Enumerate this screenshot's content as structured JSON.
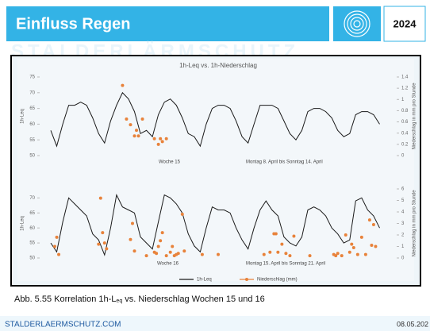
{
  "header": {
    "title": "Einfluss Regen",
    "year": "2024",
    "watermark": "STALDERLÄRMSCHUTZ"
  },
  "chart_data": [
    {
      "type": "line",
      "title": "1h-Leq vs. 1h-Niederschlag",
      "y_label": "1h-Leq",
      "y2_label": "Niederschlag in mm pro Stunde",
      "annotations": [
        "Woche 15",
        "Montag 8. April bis Sonntag 14. April"
      ],
      "xlim": [
        0,
        168
      ],
      "ylim": [
        50,
        75
      ],
      "yticks": [
        50,
        55,
        60,
        65,
        70,
        75
      ],
      "y2lim": [
        0,
        1.4
      ],
      "y2ticks": [
        0,
        0.2,
        0.4,
        0.6,
        0.8,
        1,
        1.2,
        1.4
      ],
      "series": [
        {
          "name": "1h-Leq",
          "color": "#1a1a1a",
          "x": [
            0,
            3,
            6,
            9,
            12,
            15,
            18,
            21,
            24,
            27,
            30,
            33,
            36,
            39,
            42,
            45,
            48,
            51,
            54,
            57,
            60,
            63,
            66,
            69,
            72,
            75,
            78,
            81,
            84,
            87,
            90,
            93,
            96,
            99,
            102,
            105,
            108,
            111,
            114,
            117,
            120,
            123,
            126,
            129,
            132,
            135,
            138,
            141,
            144,
            147,
            150,
            153,
            156,
            159,
            162,
            165
          ],
          "values": [
            58,
            53,
            60,
            66,
            66,
            67,
            66,
            62,
            57,
            54,
            61,
            66,
            70,
            68,
            64,
            57,
            58,
            56,
            63,
            67,
            68,
            66,
            62,
            57,
            56,
            53,
            60,
            65,
            66,
            66,
            65,
            61,
            56,
            54,
            60,
            66,
            66,
            66,
            65,
            61,
            57,
            55,
            58,
            64,
            65,
            65,
            64,
            62,
            58,
            56,
            57,
            63,
            64,
            64,
            63,
            60
          ]
        },
        {
          "name": "Niederschlag (mm)",
          "color": "#e8823a",
          "axis": "y2",
          "x": [
            36,
            38,
            40,
            42,
            43,
            44,
            46,
            52,
            54,
            55,
            56,
            58
          ],
          "values": [
            1.25,
            0.65,
            0.55,
            0.35,
            0.45,
            0.35,
            0.65,
            0.3,
            0.2,
            0.3,
            0.25,
            0.3
          ]
        }
      ]
    },
    {
      "type": "line",
      "y_label": "1h-Leq",
      "y2_label": "Niederschlag in mm pro Stunde",
      "annotations": [
        "Woche 16",
        "Montag 15. April bis Sonntag 21. April"
      ],
      "xlim": [
        0,
        168
      ],
      "ylim": [
        50,
        73
      ],
      "yticks": [
        50,
        55,
        60,
        65,
        70
      ],
      "y2lim": [
        0,
        6
      ],
      "y2ticks": [
        0,
        1,
        2,
        3,
        4,
        5,
        6
      ],
      "legend": "bottom",
      "series": [
        {
          "name": "1h-Leq",
          "color": "#1a1a1a",
          "x": [
            0,
            3,
            6,
            9,
            12,
            15,
            18,
            21,
            24,
            27,
            30,
            33,
            36,
            39,
            42,
            45,
            48,
            51,
            54,
            57,
            60,
            63,
            66,
            69,
            72,
            75,
            78,
            81,
            84,
            87,
            90,
            93,
            96,
            99,
            102,
            105,
            108,
            111,
            114,
            117,
            120,
            123,
            126,
            129,
            132,
            135,
            138,
            141,
            144,
            147,
            150,
            153,
            156,
            159,
            162,
            165
          ],
          "values": [
            55,
            52,
            62,
            70,
            68,
            66,
            64,
            58,
            56,
            51,
            60,
            71,
            67,
            66,
            65,
            57,
            55,
            53,
            62,
            71,
            70,
            68,
            65,
            58,
            54,
            52,
            60,
            67,
            66,
            66,
            65,
            60,
            56,
            53,
            60,
            66,
            69,
            66,
            64,
            57,
            55,
            54,
            57,
            66,
            67,
            66,
            64,
            60,
            58,
            55,
            56,
            69,
            70,
            66,
            64,
            60
          ]
        },
        {
          "name": "Niederschlag (mm)",
          "color": "#e8823a",
          "axis": "y2",
          "x": [
            2,
            3,
            4,
            24,
            25,
            26,
            27,
            28,
            40,
            41,
            42,
            48,
            52,
            53,
            54,
            55,
            56,
            58,
            60,
            61,
            62,
            63,
            64,
            66,
            67,
            76,
            84,
            107,
            110,
            112,
            113,
            114,
            116,
            118,
            120,
            122,
            130,
            142,
            143,
            144,
            146,
            148,
            150,
            151,
            152,
            154,
            156,
            158,
            160,
            161,
            162,
            163
          ],
          "values": [
            1,
            1.8,
            0.3,
            1.2,
            5.2,
            2.2,
            1.3,
            0.8,
            1.6,
            3,
            0.6,
            0.2,
            0.5,
            0.4,
            1,
            1.5,
            2.2,
            0.2,
            0.5,
            1,
            0.2,
            0.3,
            0.4,
            3.8,
            0.6,
            0.3,
            0.3,
            0.3,
            0.5,
            2.1,
            2.1,
            0.5,
            1.2,
            0.4,
            0.2,
            1.9,
            0.2,
            0.3,
            0.2,
            0.4,
            0.2,
            2,
            0.5,
            1.2,
            0.9,
            0.3,
            1.8,
            0.3,
            3.3,
            1.1,
            2.9,
            1
          ]
        }
      ]
    }
  ],
  "caption": [
    "Abb. 5.55 Korrelation 1h-L",
    "eq",
    " vs. Niederschlag Wochen 15 und 16"
  ],
  "footer": {
    "site": "STALDERLAERMSCHUTZ.COM",
    "date": "08.05.202"
  }
}
